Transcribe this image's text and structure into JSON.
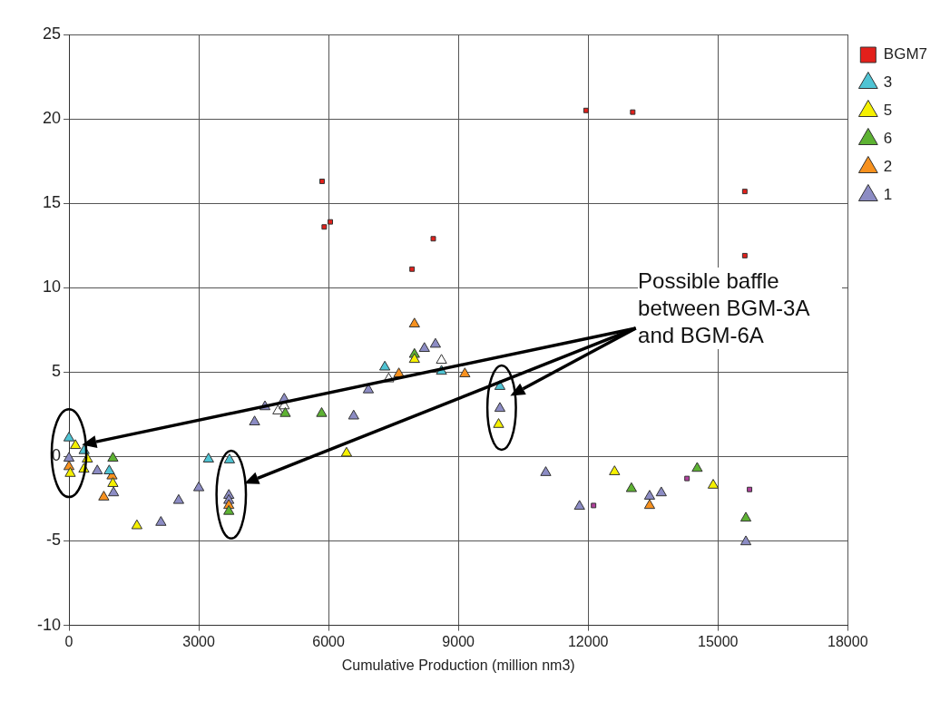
{
  "chart_data": {
    "type": "scatter",
    "xlabel": "Cumulative Production (million nm3)",
    "xlim": [
      0,
      18000
    ],
    "xticks": [
      0,
      3000,
      6000,
      9000,
      12000,
      15000,
      18000
    ],
    "ylim": [
      -10,
      25
    ],
    "yticks": [
      -10,
      -5,
      0,
      5,
      10,
      15,
      20,
      25
    ],
    "grid": true,
    "legend": "top right",
    "annotations": [
      "Possible baffle between BGM-3A and BGM-6A"
    ],
    "series": [
      {
        "name": "BGM7",
        "color": "#e3201b",
        "marker": "square",
        "x": [
          5850,
          5900,
          6040,
          7930,
          8420,
          11950,
          13030,
          15620,
          15620
        ],
        "values": [
          16.3,
          13.6,
          13.9,
          11.1,
          12.9,
          20.5,
          20.4,
          15.7,
          11.9
        ]
      },
      {
        "name": "3",
        "color": "#4fc4d4",
        "marker": "triangle",
        "x": [
          0,
          350,
          930,
          3225,
          3710,
          7300,
          8610,
          9960
        ],
        "values": [
          1.1,
          0.35,
          -0.85,
          -0.15,
          -0.2,
          5.3,
          5.05,
          4.15
        ]
      },
      {
        "name": "5",
        "color": "#f5f000",
        "marker": "triangle",
        "x": [
          30,
          150,
          345,
          425,
          1015,
          1570,
          6415,
          7985,
          9930,
          12610,
          14890
        ],
        "values": [
          -1.0,
          0.65,
          -0.75,
          -0.15,
          -1.6,
          -4.1,
          0.2,
          5.75,
          1.9,
          -0.9,
          -1.7
        ]
      },
      {
        "name": "6",
        "color": "#5db232",
        "marker": "triangle",
        "x": [
          1015,
          3695,
          5000,
          5840,
          7985,
          13000,
          14520,
          15645
        ],
        "values": [
          -0.1,
          -3.25,
          2.55,
          2.55,
          6.05,
          -1.9,
          -0.7,
          -3.65
        ]
      },
      {
        "name": "2",
        "color": "#f7911e",
        "marker": "triangle",
        "x": [
          0,
          805,
          995,
          3695,
          7625,
          7985,
          9150,
          13420
        ],
        "values": [
          -0.6,
          -2.4,
          -1.15,
          -2.9,
          4.9,
          7.85,
          4.9,
          -2.9
        ]
      },
      {
        "name": "1",
        "color": "#8c8cc4",
        "marker": "triangle",
        "x": [
          0,
          655,
          1030,
          2125,
          2535,
          3000,
          3695,
          3695,
          4290,
          4530,
          4975,
          6580,
          6920,
          8215,
          8470,
          9960,
          11020,
          11800,
          13420,
          13690,
          15645
        ],
        "values": [
          -0.1,
          -0.85,
          -2.15,
          -3.9,
          -2.6,
          -1.85,
          -2.3,
          -2.6,
          2.05,
          2.95,
          3.4,
          2.4,
          3.95,
          6.4,
          6.65,
          2.85,
          -0.95,
          -2.95,
          -2.35,
          -2.15,
          -5.05
        ]
      },
      {
        "color": "#b0409c",
        "marker": "square",
        "x": [
          12125,
          14285,
          15730
        ],
        "values": [
          -2.9,
          -1.3,
          -1.95
        ]
      },
      {
        "color": "#ffffff",
        "marker": "triangle",
        "x": [
          4830,
          4975,
          7390,
          8610
        ],
        "values": [
          2.7,
          3.0,
          4.6,
          5.7
        ]
      }
    ]
  }
}
